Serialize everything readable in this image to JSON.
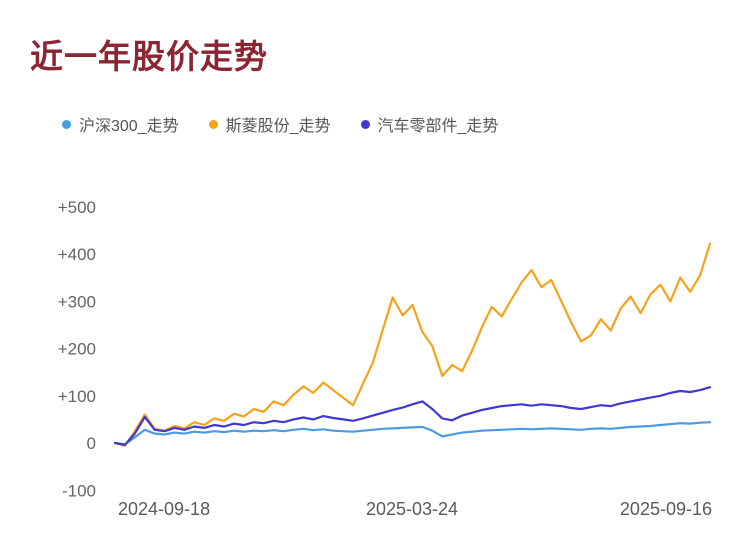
{
  "header": {
    "title": "近一年股价走势",
    "title_color": "#8b2532"
  },
  "chart_data": {
    "type": "line",
    "title": "近一年股价走势",
    "subtitle": "",
    "unit": "percent_change",
    "grid": false,
    "legend_position": "top",
    "background": "#ffffff",
    "x_axis": {
      "label": "",
      "tick_labels": [
        "2024-09-18",
        "2025-03-24",
        "2025-09-16"
      ],
      "range_note": "dates from 2024-09-18 to 2025-09-16, evenly spaced samples"
    },
    "y_axis": {
      "label": "",
      "ylim": [
        -100,
        500
      ],
      "ticks": [
        {
          "label": "+500",
          "value": 500
        },
        {
          "label": "+400",
          "value": 400
        },
        {
          "label": "+300",
          "value": 300
        },
        {
          "label": "+200",
          "value": 200
        },
        {
          "label": "+100",
          "value": 100
        },
        {
          "label": "0",
          "value": 0
        },
        {
          "label": "-100",
          "value": -100
        }
      ]
    },
    "series": [
      {
        "name": "沪深300_走势",
        "color": "#4c9be0",
        "values": [
          0,
          -3,
          12,
          28,
          20,
          18,
          22,
          20,
          24,
          22,
          25,
          23,
          26,
          24,
          26,
          25,
          27,
          25,
          28,
          30,
          27,
          29,
          26,
          25,
          24,
          26,
          28,
          30,
          31,
          32,
          33,
          34,
          26,
          14,
          18,
          22,
          24,
          26,
          27,
          28,
          29,
          30,
          29,
          30,
          31,
          30,
          29,
          28,
          30,
          31,
          30,
          32,
          34,
          35,
          36,
          38,
          40,
          42,
          41,
          43,
          44
        ]
      },
      {
        "name": "斯菱股份_走势",
        "color": "#f9a11b",
        "values": [
          0,
          -6,
          25,
          60,
          30,
          26,
          36,
          31,
          44,
          38,
          52,
          47,
          62,
          56,
          72,
          66,
          88,
          80,
          102,
          120,
          106,
          128,
          112,
          96,
          80,
          125,
          170,
          240,
          308,
          270,
          292,
          235,
          205,
          142,
          165,
          152,
          195,
          245,
          288,
          268,
          305,
          340,
          366,
          330,
          345,
          300,
          255,
          215,
          228,
          262,
          238,
          285,
          310,
          275,
          315,
          335,
          300,
          350,
          320,
          355,
          422
        ]
      },
      {
        "name": "汽车零部件_走势",
        "color": "#4038d0",
        "values": [
          0,
          -4,
          20,
          55,
          28,
          25,
          32,
          28,
          35,
          32,
          38,
          35,
          41,
          38,
          44,
          42,
          47,
          44,
          50,
          54,
          50,
          57,
          53,
          50,
          47,
          52,
          58,
          64,
          70,
          75,
          82,
          88,
          72,
          52,
          48,
          58,
          64,
          70,
          74,
          78,
          80,
          82,
          79,
          82,
          80,
          78,
          74,
          72,
          76,
          80,
          78,
          84,
          88,
          92,
          96,
          100,
          106,
          110,
          108,
          112,
          118
        ]
      }
    ]
  }
}
